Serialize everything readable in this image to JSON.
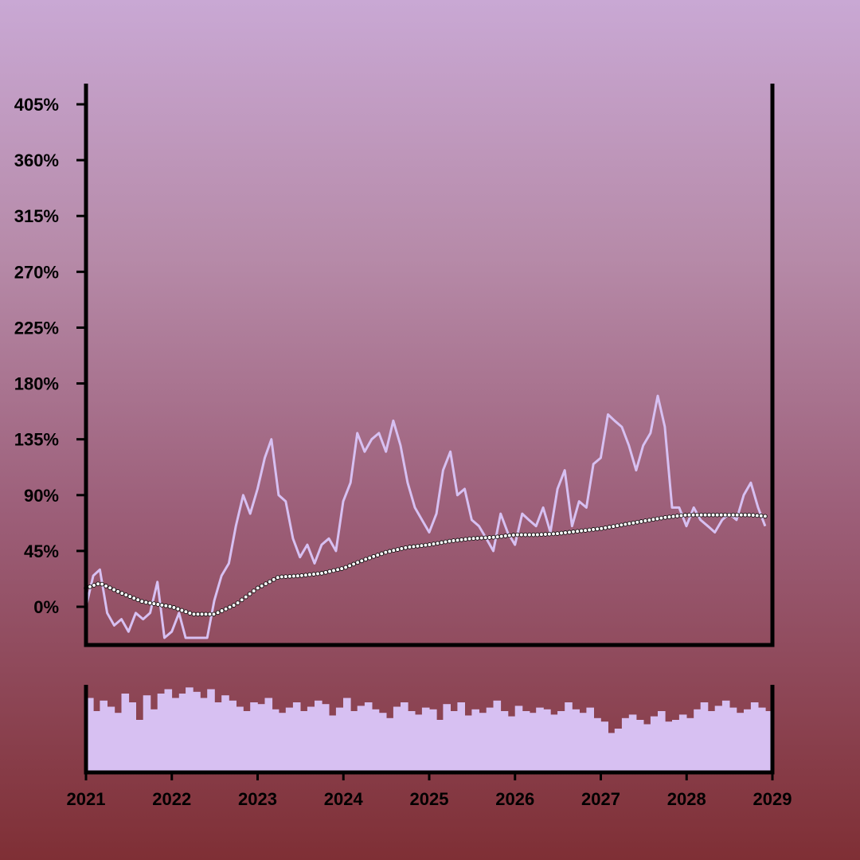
{
  "chart_data": [
    {
      "type": "line",
      "title": "",
      "xlabel": "",
      "ylabel": "",
      "x_tick_labels": [
        "2021",
        "2022",
        "2023",
        "2024",
        "2025",
        "2026",
        "2027",
        "2028",
        "2029"
      ],
      "y_tick_labels": [
        "0%",
        "45%",
        "90%",
        "135%",
        "180%",
        "225%",
        "270%",
        "315%",
        "360%",
        "405%"
      ],
      "y_ticks": [
        0,
        45,
        90,
        135,
        180,
        225,
        270,
        315,
        360,
        405
      ],
      "xlim": [
        "2021-01-01",
        "2029-01-01"
      ],
      "ylim": [
        -30,
        420
      ],
      "grid": false,
      "legend": "none",
      "series": [
        {
          "style": "line",
          "color": "#d7c0f2",
          "x": [
            "2021-01-01",
            "2021-02-01",
            "2021-03-01",
            "2021-04-01",
            "2021-05-01",
            "2021-06-01",
            "2021-07-01",
            "2021-08-01",
            "2021-09-01",
            "2021-10-01",
            "2021-11-01",
            "2021-12-01",
            "2022-01-01",
            "2022-02-01",
            "2022-03-01",
            "2022-04-01",
            "2022-05-01",
            "2022-06-01",
            "2022-07-01",
            "2022-08-01",
            "2022-09-01",
            "2022-10-01",
            "2022-11-01",
            "2022-12-01",
            "2023-01-01",
            "2023-02-01",
            "2023-03-01",
            "2023-04-01",
            "2023-05-01",
            "2023-06-01",
            "2023-07-01",
            "2023-08-01",
            "2023-09-01",
            "2023-10-01",
            "2023-11-01",
            "2023-12-01",
            "2024-01-01",
            "2024-02-01",
            "2024-03-01",
            "2024-04-01",
            "2024-05-01",
            "2024-06-01",
            "2024-07-01",
            "2024-08-01",
            "2024-09-01",
            "2024-10-01",
            "2024-11-01",
            "2024-12-01",
            "2025-01-01",
            "2025-02-01",
            "2025-03-01",
            "2025-04-01",
            "2025-05-01",
            "2025-06-01",
            "2025-07-01",
            "2025-08-01",
            "2025-09-01",
            "2025-10-01",
            "2025-11-01",
            "2025-12-01",
            "2026-01-01",
            "2026-02-01",
            "2026-03-01",
            "2026-04-01",
            "2026-05-01",
            "2026-06-01",
            "2026-07-01",
            "2026-08-01",
            "2026-09-01",
            "2026-10-01",
            "2026-11-01",
            "2026-12-01",
            "2027-01-01",
            "2027-02-01",
            "2027-03-01",
            "2027-04-01",
            "2027-05-01",
            "2027-06-01",
            "2027-07-01",
            "2027-08-01",
            "2027-09-01",
            "2027-10-01",
            "2027-11-01",
            "2027-12-01",
            "2028-01-01",
            "2028-02-01",
            "2028-03-01",
            "2028-04-01",
            "2028-05-01",
            "2028-06-01",
            "2028-07-01",
            "2028-08-01",
            "2028-09-01",
            "2028-10-01",
            "2028-11-01",
            "2028-12-01"
          ],
          "values": [
            0,
            25,
            30,
            -5,
            -15,
            -10,
            -20,
            -5,
            -10,
            -5,
            20,
            -25,
            -20,
            -5,
            -25,
            -25,
            -25,
            -25,
            5,
            25,
            35,
            65,
            90,
            75,
            95,
            120,
            135,
            90,
            85,
            55,
            40,
            50,
            35,
            50,
            55,
            45,
            85,
            100,
            140,
            125,
            135,
            140,
            125,
            150,
            130,
            100,
            80,
            70,
            60,
            75,
            110,
            125,
            90,
            95,
            70,
            65,
            55,
            45,
            75,
            60,
            50,
            75,
            70,
            65,
            80,
            60,
            95,
            110,
            65,
            85,
            80,
            115,
            120,
            155,
            150,
            145,
            130,
            110,
            130,
            140,
            170,
            145,
            80,
            80,
            65,
            80,
            70,
            65,
            60,
            70,
            75,
            70,
            90,
            100,
            80,
            65
          ]
        },
        {
          "style": "dotted-trend",
          "color": "#ffffff",
          "x": [
            "2021-01-01",
            "2021-03-01",
            "2021-06-01",
            "2021-09-01",
            "2022-01-01",
            "2022-04-01",
            "2022-07-01",
            "2022-10-01",
            "2023-01-01",
            "2023-04-01",
            "2023-07-01",
            "2023-10-01",
            "2024-01-01",
            "2024-04-01",
            "2024-07-01",
            "2024-10-01",
            "2025-01-01",
            "2025-04-01",
            "2025-07-01",
            "2025-10-01",
            "2026-01-01",
            "2026-04-01",
            "2026-07-01",
            "2026-10-01",
            "2027-01-01",
            "2027-04-01",
            "2027-07-01",
            "2027-10-01",
            "2028-01-01",
            "2028-04-01",
            "2028-07-01",
            "2028-10-01",
            "2028-12-01"
          ],
          "values": [
            15,
            19,
            11,
            4,
            0,
            -6,
            -6,
            2,
            15,
            24,
            25,
            27,
            31,
            38,
            44,
            48,
            50,
            53,
            55,
            56,
            58,
            58,
            59,
            61,
            63,
            66,
            69,
            72,
            74,
            74,
            74,
            74,
            73
          ]
        }
      ]
    },
    {
      "type": "bar",
      "title": "",
      "xlabel": "",
      "ylabel": "",
      "color": "#d7c0f2",
      "x_tick_labels": [
        "2021",
        "2022",
        "2023",
        "2024",
        "2025",
        "2026",
        "2027",
        "2028",
        "2029"
      ],
      "xlim": [
        "2021-01-01",
        "2029-01-01"
      ],
      "ylim": [
        0,
        1
      ],
      "grid": false,
      "legend": "none",
      "x": [
        "2021-01-01",
        "2021-02-01",
        "2021-03-01",
        "2021-04-01",
        "2021-05-01",
        "2021-06-01",
        "2021-07-01",
        "2021-08-01",
        "2021-09-01",
        "2021-10-01",
        "2021-11-01",
        "2021-12-01",
        "2022-01-01",
        "2022-02-01",
        "2022-03-01",
        "2022-04-01",
        "2022-05-01",
        "2022-06-01",
        "2022-07-01",
        "2022-08-01",
        "2022-09-01",
        "2022-10-01",
        "2022-11-01",
        "2022-12-01",
        "2023-01-01",
        "2023-02-01",
        "2023-03-01",
        "2023-04-01",
        "2023-05-01",
        "2023-06-01",
        "2023-07-01",
        "2023-08-01",
        "2023-09-01",
        "2023-10-01",
        "2023-11-01",
        "2023-12-01",
        "2024-01-01",
        "2024-02-01",
        "2024-03-01",
        "2024-04-01",
        "2024-05-01",
        "2024-06-01",
        "2024-07-01",
        "2024-08-01",
        "2024-09-01",
        "2024-10-01",
        "2024-11-01",
        "2024-12-01",
        "2025-01-01",
        "2025-02-01",
        "2025-03-01",
        "2025-04-01",
        "2025-05-01",
        "2025-06-01",
        "2025-07-01",
        "2025-08-01",
        "2025-09-01",
        "2025-10-01",
        "2025-11-01",
        "2025-12-01",
        "2026-01-01",
        "2026-02-01",
        "2026-03-01",
        "2026-04-01",
        "2026-05-01",
        "2026-06-01",
        "2026-07-01",
        "2026-08-01",
        "2026-09-01",
        "2026-10-01",
        "2026-11-01",
        "2026-12-01",
        "2027-01-01",
        "2027-02-01",
        "2027-03-01",
        "2027-04-01",
        "2027-05-01",
        "2027-06-01",
        "2027-07-01",
        "2027-08-01",
        "2027-09-01",
        "2027-10-01",
        "2027-11-01",
        "2027-12-01",
        "2028-01-01",
        "2028-02-01",
        "2028-03-01",
        "2028-04-01",
        "2028-05-01",
        "2028-06-01",
        "2028-07-01",
        "2028-08-01",
        "2028-09-01",
        "2028-10-01",
        "2028-11-01",
        "2028-12-01"
      ],
      "values": [
        0.85,
        0.7,
        0.82,
        0.75,
        0.68,
        0.9,
        0.8,
        0.6,
        0.88,
        0.72,
        0.9,
        0.95,
        0.85,
        0.9,
        0.97,
        0.92,
        0.85,
        0.95,
        0.8,
        0.88,
        0.82,
        0.75,
        0.7,
        0.8,
        0.78,
        0.85,
        0.72,
        0.68,
        0.74,
        0.8,
        0.7,
        0.75,
        0.82,
        0.78,
        0.65,
        0.74,
        0.85,
        0.7,
        0.76,
        0.8,
        0.72,
        0.68,
        0.62,
        0.75,
        0.8,
        0.7,
        0.66,
        0.74,
        0.72,
        0.6,
        0.78,
        0.7,
        0.8,
        0.65,
        0.72,
        0.68,
        0.74,
        0.82,
        0.7,
        0.64,
        0.76,
        0.7,
        0.68,
        0.74,
        0.72,
        0.66,
        0.7,
        0.8,
        0.72,
        0.68,
        0.74,
        0.62,
        0.58,
        0.45,
        0.5,
        0.62,
        0.66,
        0.6,
        0.55,
        0.64,
        0.7,
        0.58,
        0.6,
        0.66,
        0.62,
        0.72,
        0.8,
        0.7,
        0.76,
        0.82,
        0.74,
        0.68,
        0.72,
        0.8,
        0.74,
        0.7
      ]
    }
  ]
}
